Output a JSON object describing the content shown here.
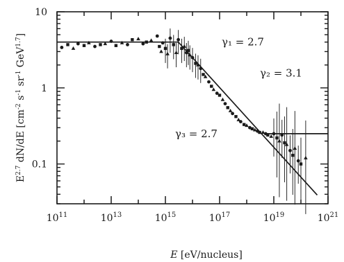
{
  "chart_data": {
    "type": "scatter",
    "x_scale": "log",
    "y_scale": "log",
    "xlim": [
      100000000000.0,
      1e+21
    ],
    "ylim": [
      0.03,
      10
    ],
    "grid": false,
    "xlabel": "E [eV/nucleus]",
    "ylabel": "E^{2.7} dN/dE [cm^{-2} s^{-1} sr^{-1} GeV^{1.7}]",
    "x_tick_labels": [
      {
        "value": 100000000000.0,
        "base": "10",
        "exp": "11"
      },
      {
        "value": 10000000000000.0,
        "base": "10",
        "exp": "13"
      },
      {
        "value": 1000000000000000.0,
        "base": "10",
        "exp": "15"
      },
      {
        "value": 1e+17,
        "base": "10",
        "exp": "17"
      },
      {
        "value": 1e+19,
        "base": "10",
        "exp": "19"
      },
      {
        "value": 1e+21,
        "base": "10",
        "exp": "21"
      }
    ],
    "y_tick_labels": [
      {
        "value": 10,
        "label": "10"
      },
      {
        "value": 1,
        "label": "1"
      },
      {
        "value": 0.1,
        "label": "0.1"
      }
    ],
    "fits": [
      {
        "x": [
          100000000000.0,
          3000000000000000.0
        ],
        "y": [
          4.0,
          4.0
        ]
      },
      {
        "x": [
          3000000000000000.0,
          4e+20
        ],
        "y": [
          4.0,
          0.039
        ]
      },
      {
        "x": [
          5e+18,
          1e+21
        ],
        "y": [
          0.25,
          0.25
        ]
      }
    ],
    "annotations": [
      {
        "text": "γ₁ = 2.7",
        "x": 1e+16,
        "y": 4.0
      },
      {
        "text": "γ₂ = 3.1",
        "x": 1e+17,
        "y": 1.3
      },
      {
        "text": "γ₃ = 2.7",
        "x": 1e+18,
        "y": 0.25
      }
    ],
    "series": [
      {
        "points": [
          [
            150000000000.0,
            3.4
          ],
          [
            250000000000.0,
            3.7
          ],
          [
            400000000000.0,
            3.3
          ],
          [
            600000000000.0,
            3.8
          ],
          [
            1000000000000.0,
            3.6
          ],
          [
            1500000000000.0,
            3.9
          ],
          [
            2500000000000.0,
            3.5
          ],
          [
            4000000000000.0,
            3.7
          ],
          [
            6000000000000.0,
            3.8
          ],
          [
            10000000000000.0,
            4.1
          ],
          [
            15000000000000.0,
            3.6
          ],
          [
            25000000000000.0,
            3.9
          ],
          [
            40000000000000.0,
            3.7
          ],
          [
            60000000000000.0,
            4.3
          ],
          [
            100000000000000.0,
            4.4
          ],
          [
            150000000000000.0,
            3.8
          ],
          [
            200000000000000.0,
            4.0
          ],
          [
            300000000000000.0,
            4.2
          ],
          [
            500000000000000.0,
            4.8
          ],
          [
            600000000000000.0,
            3.5
          ],
          [
            700000000000000.0,
            3.0
          ],
          [
            800000000000000.0,
            3.9
          ],
          [
            1000000000000000.0,
            3.3
          ],
          [
            1200000000000000.0,
            2.8
          ],
          [
            1500000000000000.0,
            4.5
          ],
          [
            2000000000000000.0,
            3.7
          ],
          [
            2500000000000000.0,
            2.9
          ],
          [
            3000000000000000.0,
            4.3
          ],
          [
            4000000000000000.0,
            3.3
          ],
          [
            5000000000000000.0,
            3.5
          ],
          [
            6000000000000000.0,
            2.9
          ],
          [
            7000000000000000.0,
            3.1
          ],
          [
            8000000000000000.0,
            2.7
          ],
          [
            1e+16,
            2.5
          ],
          [
            1.3e+16,
            2.1
          ],
          [
            1.6e+16,
            2.0
          ],
          [
            2e+16,
            1.8
          ],
          [
            2.5e+16,
            1.5
          ],
          [
            3e+16,
            1.4
          ],
          [
            4e+16,
            1.2
          ],
          [
            5e+16,
            1.05
          ],
          [
            6e+16,
            0.95
          ],
          [
            8e+16,
            0.85
          ],
          [
            1e+17,
            0.8
          ],
          [
            1.3e+17,
            0.7
          ],
          [
            1.6e+17,
            0.62
          ],
          [
            2e+17,
            0.55
          ],
          [
            2.5e+17,
            0.5
          ],
          [
            3e+17,
            0.46
          ],
          [
            4e+17,
            0.42
          ],
          [
            5e+17,
            0.38
          ],
          [
            6e+17,
            0.36
          ],
          [
            8e+17,
            0.33
          ],
          [
            1e+18,
            0.32
          ],
          [
            1.3e+18,
            0.3
          ],
          [
            1.6e+18,
            0.29
          ],
          [
            2e+18,
            0.28
          ],
          [
            2.5e+18,
            0.27
          ],
          [
            3e+18,
            0.26
          ],
          [
            4e+18,
            0.26
          ],
          [
            5e+18,
            0.25
          ],
          [
            6e+18,
            0.24
          ],
          [
            8e+18,
            0.23
          ],
          [
            1e+19,
            0.25
          ],
          [
            1.3e+19,
            0.22
          ],
          [
            1.6e+19,
            0.2
          ],
          [
            2e+19,
            0.24
          ],
          [
            2.5e+19,
            0.19
          ],
          [
            3e+19,
            0.18
          ],
          [
            4e+19,
            0.15
          ],
          [
            5e+19,
            0.13
          ],
          [
            6e+19,
            0.16
          ],
          [
            8e+19,
            0.11
          ],
          [
            1e+20,
            0.1
          ],
          [
            1.5e+20,
            0.12
          ]
        ]
      }
    ]
  }
}
